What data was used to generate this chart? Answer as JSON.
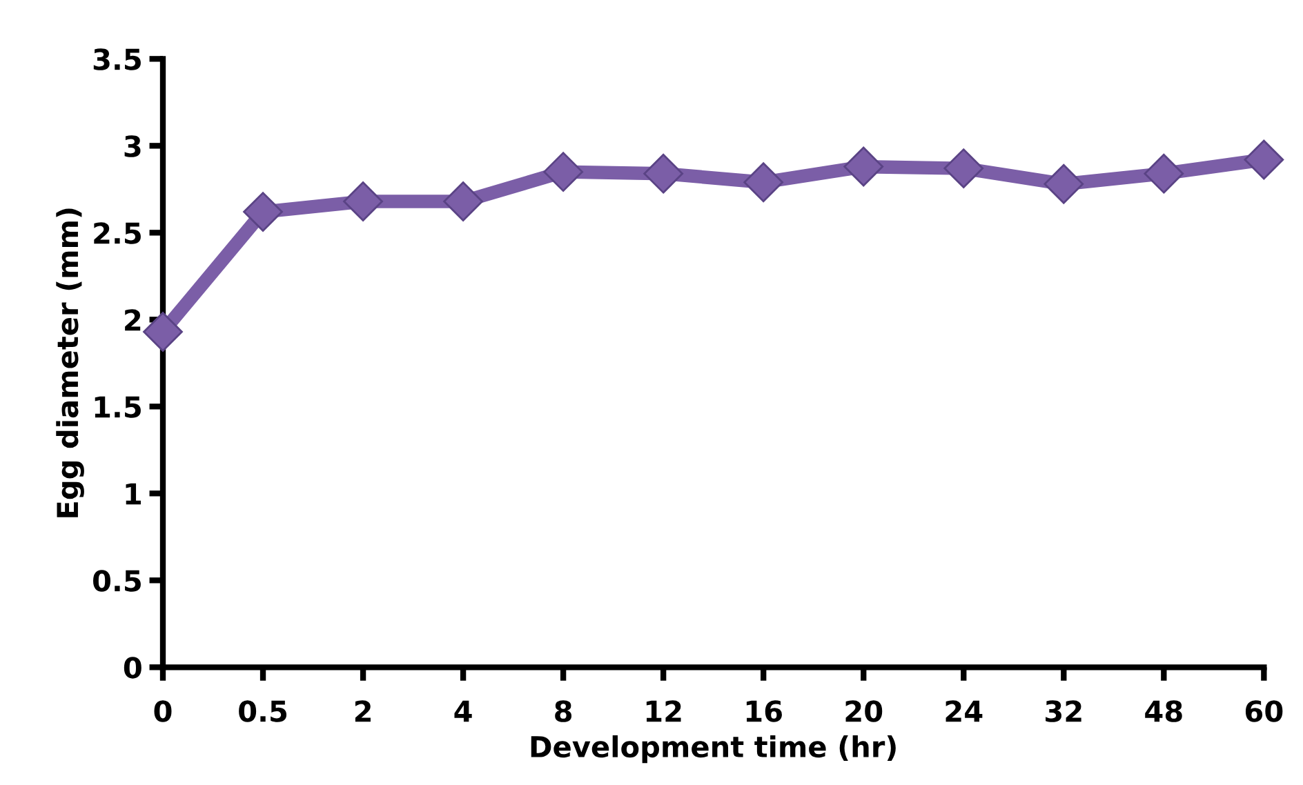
{
  "chart_data": {
    "type": "line",
    "xlabel": "Development time (hr)",
    "ylabel": "Egg diameter (mm)",
    "categories": [
      "0",
      "0.5",
      "2",
      "4",
      "8",
      "12",
      "16",
      "20",
      "24",
      "32",
      "48",
      "60"
    ],
    "series": [
      {
        "color": "#7b5ea7",
        "values": [
          1.93,
          2.62,
          2.68,
          2.68,
          2.85,
          2.84,
          2.79,
          2.88,
          2.87,
          2.78,
          2.84,
          2.92
        ]
      }
    ],
    "ylim": [
      0,
      3.5
    ],
    "yticks": [
      0,
      0.5,
      1,
      1.5,
      2,
      2.5,
      3,
      3.5
    ],
    "marker": "diamond",
    "line_style": "solid",
    "grid": false
  }
}
